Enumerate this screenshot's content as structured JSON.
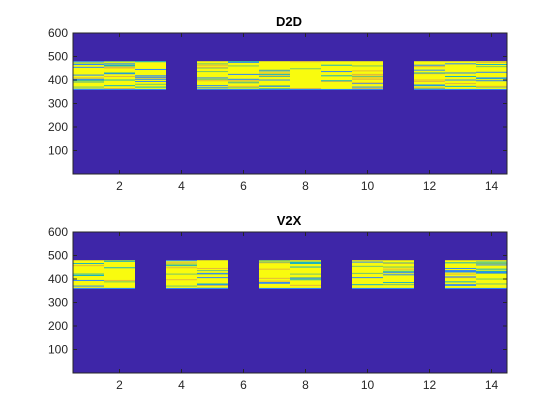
{
  "chart_data": [
    {
      "type": "heatmap",
      "title": "D2D",
      "xlabel": "",
      "ylabel": "",
      "xlim": [
        0.5,
        14.5
      ],
      "ylim": [
        0,
        600
      ],
      "xticks": [
        2,
        4,
        6,
        8,
        10,
        12,
        14
      ],
      "yticks": [
        100,
        200,
        300,
        400,
        500,
        600
      ],
      "grid": false,
      "background_color": "#3e26a8",
      "active_band": [
        360,
        480
      ],
      "active_columns": [
        1,
        2,
        3,
        5,
        6,
        7,
        8,
        9,
        10,
        12,
        13,
        14
      ],
      "colormap": [
        "#3e26a8",
        "#2e87f7",
        "#1cb3bd",
        "#74c56b",
        "#e3b93a",
        "#f9fb0e"
      ]
    },
    {
      "type": "heatmap",
      "title": "V2X",
      "xlabel": "",
      "ylabel": "",
      "xlim": [
        0.5,
        14.5
      ],
      "ylim": [
        0,
        600
      ],
      "xticks": [
        2,
        4,
        6,
        8,
        10,
        12,
        14
      ],
      "yticks": [
        100,
        200,
        300,
        400,
        500,
        600
      ],
      "grid": false,
      "background_color": "#3e26a8",
      "active_band": [
        360,
        480
      ],
      "active_columns": [
        1,
        2,
        4,
        5,
        7,
        8,
        10,
        11,
        13,
        14
      ],
      "colormap": [
        "#3e26a8",
        "#2e87f7",
        "#1cb3bd",
        "#74c56b",
        "#e3b93a",
        "#f9fb0e"
      ]
    }
  ]
}
